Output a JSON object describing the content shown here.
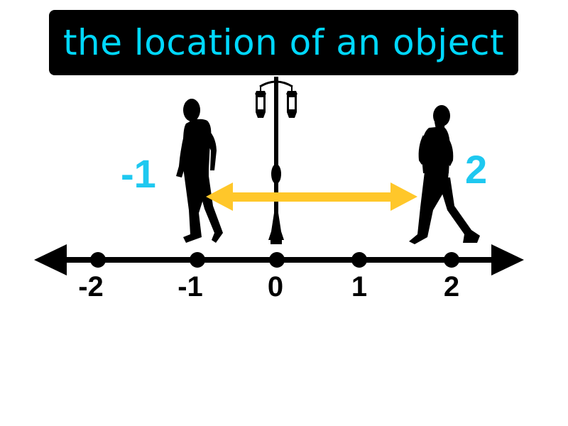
{
  "title": "the location of an object",
  "colors": {
    "title_bg": "#000000",
    "title_text": "#00d8ff",
    "position_labels": "#1ec8f0",
    "arrow": "#ffc72a",
    "number_line": "#000000"
  },
  "number_line": {
    "ticks": [
      "-2",
      "-1",
      "0",
      "1",
      "2"
    ]
  },
  "positions": {
    "left_label": "-1",
    "right_label": "2"
  },
  "icons": [
    "person-walking-left-icon",
    "street-lamp-icon",
    "person-walking-right-icon",
    "double-arrow-icon"
  ]
}
